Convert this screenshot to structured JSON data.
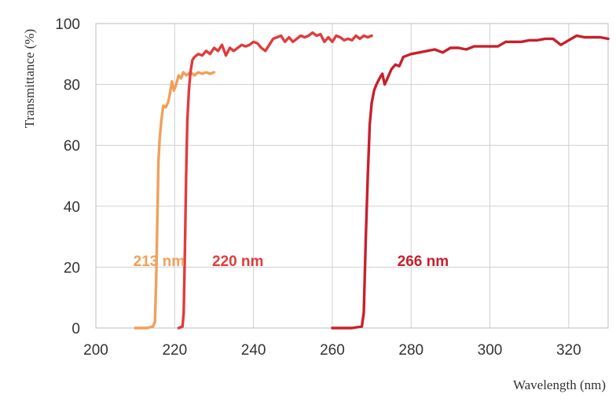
{
  "chart_data": {
    "type": "line",
    "xlabel": "Wavelength (nm)",
    "ylabel": "Transmittance (%)",
    "xlim": [
      200,
      330
    ],
    "ylim": [
      0,
      100
    ],
    "xticks": [
      200,
      220,
      240,
      260,
      280,
      300,
      320
    ],
    "yticks": [
      0,
      20,
      40,
      60,
      80,
      100
    ],
    "grid": true,
    "series": [
      {
        "name": "213 nm",
        "color": "#f0a05a",
        "x": [
          210,
          213,
          214.5,
          215,
          215.3,
          215.6,
          215.9,
          216.2,
          216.6,
          217.1,
          217.7,
          218.3,
          218.8,
          219.3,
          219.8,
          220.4,
          221,
          221.6,
          222.2,
          223,
          224,
          225,
          226,
          227,
          228,
          229,
          230
        ],
        "y": [
          0,
          0,
          0.5,
          2,
          15,
          35,
          55,
          62,
          68,
          73,
          72.5,
          74,
          77,
          81,
          78,
          80,
          83,
          82,
          84,
          83,
          84,
          83,
          84,
          83.5,
          84,
          83.5,
          84
        ]
      },
      {
        "name": "220 nm",
        "color": "#e03c3c",
        "x": [
          221,
          222,
          222.3,
          222.6,
          222.9,
          223.2,
          223.6,
          224,
          224.5,
          225,
          226,
          227,
          228,
          229,
          230,
          231,
          232,
          233,
          234,
          235,
          236,
          237,
          238,
          239,
          240,
          241,
          242,
          243,
          244,
          245,
          246,
          247,
          248,
          249,
          250,
          251,
          252,
          253,
          254,
          255,
          256,
          257,
          258,
          259,
          260,
          261,
          262,
          263,
          264,
          265,
          266,
          267,
          268,
          269,
          270
        ],
        "y": [
          0,
          0.5,
          5,
          25,
          50,
          68,
          78,
          84,
          88,
          89,
          90,
          89.5,
          91,
          90,
          92,
          91,
          93,
          89.5,
          92,
          91,
          92,
          93,
          92.5,
          93,
          94,
          93.5,
          92,
          91,
          93,
          95,
          95.5,
          96,
          94,
          95.5,
          94,
          95,
          96,
          95.5,
          96,
          97,
          96,
          96.5,
          94,
          95.5,
          94,
          96,
          95.5,
          94.5,
          95,
          94.5,
          96,
          95,
          96,
          95.5,
          96
        ]
      },
      {
        "name": "266 nm",
        "color": "#c8202c",
        "x": [
          260,
          265,
          267.5,
          268,
          268.5,
          269,
          269.5,
          270,
          270.6,
          271.2,
          272,
          272.7,
          273.3,
          274,
          275,
          276,
          277,
          278,
          279,
          280,
          282,
          284,
          286,
          288,
          290,
          292,
          294,
          296,
          298,
          300,
          302,
          304,
          306,
          308,
          310,
          312,
          314,
          316,
          318,
          320,
          322,
          324,
          326,
          328,
          330
        ],
        "y": [
          0,
          0,
          0.5,
          5,
          30,
          50,
          67,
          74,
          78,
          80,
          82,
          83.5,
          80,
          82,
          85,
          86.5,
          86,
          89,
          89.5,
          90,
          90.5,
          91,
          91.5,
          90.5,
          92,
          92,
          91.5,
          92.5,
          92.5,
          92.5,
          92.5,
          94,
          94,
          94,
          94.5,
          94.5,
          95,
          95,
          93,
          94.5,
          96,
          95.5,
          95.5,
          95.5,
          95
        ]
      }
    ],
    "annotations": [
      {
        "text": "213 nm",
        "x": 209.5,
        "y": 10,
        "color": "#f0a05a"
      },
      {
        "text": "220 nm",
        "x": 229.5,
        "y": 10,
        "color": "#e03c3c"
      },
      {
        "text": "266 nm",
        "x": 276.5,
        "y": 10,
        "color": "#c8202c"
      }
    ]
  }
}
